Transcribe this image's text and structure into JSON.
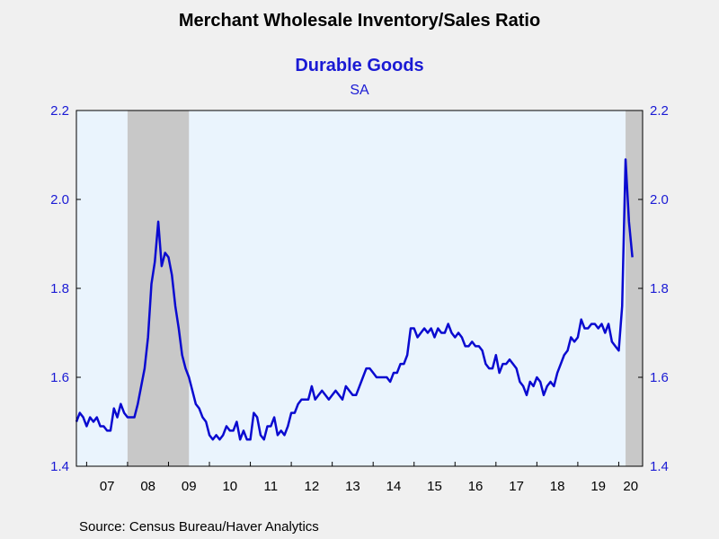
{
  "chart_data": {
    "type": "line",
    "title": "Merchant Wholesale Inventory/Sales Ratio",
    "subtitle": "Durable Goods",
    "unit_label": "SA",
    "source": "Source:  Census Bureau/Haver Analytics",
    "ylim": [
      1.4,
      2.2
    ],
    "y_ticks": [
      "1.4",
      "1.6",
      "1.8",
      "2.0",
      "2.2"
    ],
    "x_range": [
      2006.75,
      2020.583
    ],
    "x_tick_labels": [
      "07",
      "08",
      "09",
      "10",
      "11",
      "12",
      "13",
      "14",
      "15",
      "16",
      "17",
      "18",
      "19",
      "20"
    ],
    "recessions": [
      [
        2008.0,
        2009.5
      ],
      [
        2020.167,
        2020.583
      ]
    ],
    "colors": {
      "line": "#0a0ad0",
      "plot_bg": "#eaf4fd",
      "recession": "#c8c8c8",
      "axis_text": "#1a1ad4"
    },
    "series": [
      {
        "start": 2006.75,
        "frequency": "monthly",
        "values": [
          1.5,
          1.52,
          1.51,
          1.49,
          1.51,
          1.5,
          1.51,
          1.49,
          1.49,
          1.48,
          1.48,
          1.53,
          1.51,
          1.54,
          1.52,
          1.51,
          1.51,
          1.51,
          1.54,
          1.58,
          1.62,
          1.69,
          1.81,
          1.86,
          1.95,
          1.85,
          1.88,
          1.87,
          1.83,
          1.76,
          1.71,
          1.65,
          1.62,
          1.6,
          1.57,
          1.54,
          1.53,
          1.51,
          1.5,
          1.47,
          1.46,
          1.47,
          1.46,
          1.47,
          1.49,
          1.48,
          1.48,
          1.5,
          1.46,
          1.48,
          1.46,
          1.46,
          1.52,
          1.51,
          1.47,
          1.46,
          1.49,
          1.49,
          1.51,
          1.47,
          1.48,
          1.47,
          1.49,
          1.52,
          1.52,
          1.54,
          1.55,
          1.55,
          1.55,
          1.58,
          1.55,
          1.56,
          1.57,
          1.56,
          1.55,
          1.56,
          1.57,
          1.56,
          1.55,
          1.58,
          1.57,
          1.56,
          1.56,
          1.58,
          1.6,
          1.62,
          1.62,
          1.61,
          1.6,
          1.6,
          1.6,
          1.6,
          1.59,
          1.61,
          1.61,
          1.63,
          1.63,
          1.65,
          1.71,
          1.71,
          1.69,
          1.7,
          1.71,
          1.7,
          1.71,
          1.69,
          1.71,
          1.7,
          1.7,
          1.72,
          1.7,
          1.69,
          1.7,
          1.69,
          1.67,
          1.67,
          1.68,
          1.67,
          1.67,
          1.66,
          1.63,
          1.62,
          1.62,
          1.65,
          1.61,
          1.63,
          1.63,
          1.64,
          1.63,
          1.62,
          1.59,
          1.58,
          1.56,
          1.59,
          1.58,
          1.6,
          1.59,
          1.56,
          1.58,
          1.59,
          1.58,
          1.61,
          1.63,
          1.65,
          1.66,
          1.69,
          1.68,
          1.69,
          1.73,
          1.71,
          1.71,
          1.72,
          1.72,
          1.71,
          1.72,
          1.7,
          1.72,
          1.68,
          1.67,
          1.66,
          1.76,
          2.09,
          1.95,
          1.87
        ]
      }
    ]
  }
}
